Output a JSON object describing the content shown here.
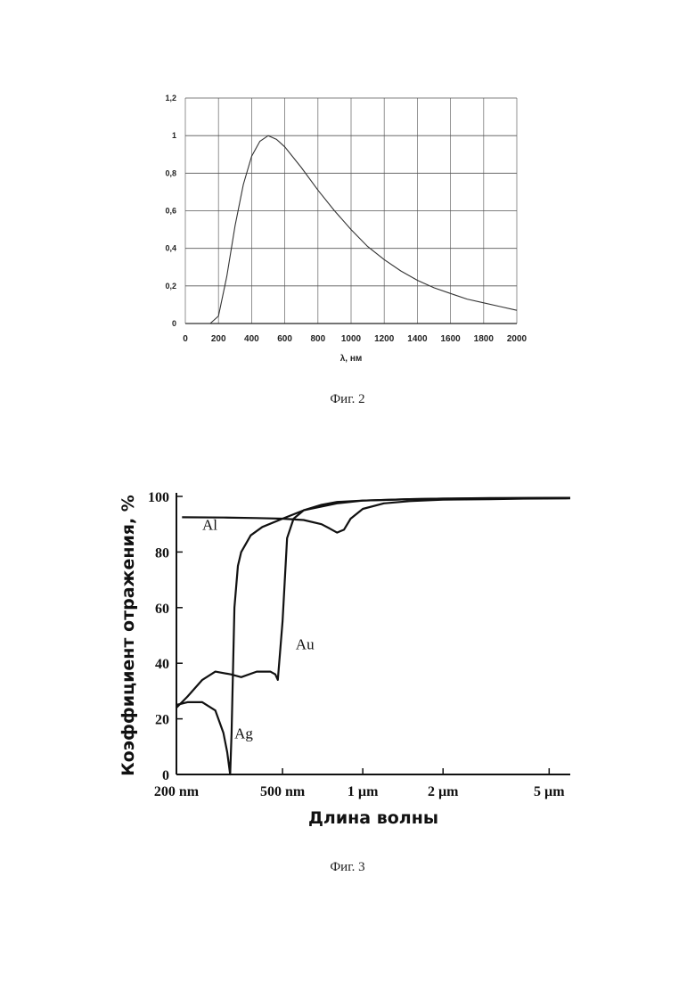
{
  "figures": [
    {
      "caption": "Фиг. 2",
      "chart_data": {
        "type": "line",
        "title": "",
        "xlabel": "λ, нм",
        "ylabel": "",
        "xlim": [
          0,
          2000
        ],
        "ylim": [
          0,
          1.2
        ],
        "x_ticks": [
          "0",
          "200",
          "400",
          "600",
          "800",
          "1000",
          "1200",
          "1400",
          "1600",
          "1800",
          "2000"
        ],
        "y_ticks": [
          "0",
          "0,2",
          "0,4",
          "0,6",
          "0,8",
          "1",
          "1,2"
        ],
        "grid": true,
        "series": [
          {
            "x": [
              150,
              200,
              250,
              300,
              350,
              400,
              450,
              500,
              550,
              600,
              700,
              800,
              900,
              1000,
              1100,
              1200,
              1300,
              1400,
              1500,
              1600,
              1700,
              1800,
              1900,
              2000
            ],
            "y": [
              0.0,
              0.04,
              0.25,
              0.52,
              0.74,
              0.89,
              0.97,
              1.0,
              0.98,
              0.94,
              0.83,
              0.71,
              0.6,
              0.5,
              0.41,
              0.34,
              0.28,
              0.23,
              0.19,
              0.16,
              0.13,
              0.11,
              0.09,
              0.07
            ]
          }
        ]
      }
    },
    {
      "caption": "Фиг. 3",
      "chart_data": {
        "type": "line",
        "title": "",
        "xlabel": "Длина волны",
        "ylabel": "Коэффициент отражения, %",
        "x_scale": "log",
        "x_unit": "nm",
        "xlim": [
          200,
          6000
        ],
        "ylim": [
          0,
          100
        ],
        "x_ticks": [
          {
            "value": 200,
            "label": "200 nm"
          },
          {
            "value": 500,
            "label": "500 nm"
          },
          {
            "value": 1000,
            "label": "1 µm"
          },
          {
            "value": 2000,
            "label": "2 µm"
          },
          {
            "value": 5000,
            "label": "5 µm"
          }
        ],
        "y_ticks": [
          "0",
          "20",
          "40",
          "60",
          "80",
          "100"
        ],
        "grid": false,
        "series": [
          {
            "name": "Al",
            "x": [
              210,
              300,
              400,
              500,
              600,
              700,
              750,
              800,
              850,
              900,
              1000,
              1200,
              1500,
              2000,
              3000,
              4000,
              6000
            ],
            "y": [
              92.5,
              92.4,
              92.2,
              92.0,
              91.5,
              90.0,
              88.5,
              87.0,
              88.0,
              92.0,
              95.5,
              97.5,
              98.3,
              98.8,
              99.0,
              99.2,
              99.3
            ]
          },
          {
            "name": "Au",
            "x": [
              200,
              220,
              250,
              280,
              320,
              350,
              400,
              450,
              470,
              480,
              500,
              520,
              550,
              600,
              700,
              800,
              1000,
              1500,
              2000,
              3000,
              6000
            ],
            "y": [
              24,
              28,
              34,
              37,
              36,
              35,
              37,
              37,
              36,
              34,
              55,
              85,
              92,
              95,
              97,
              98,
              98.5,
              99,
              99.2,
              99.3,
              99.5
            ]
          },
          {
            "name": "Ag",
            "x": [
              200,
              220,
              250,
              280,
              300,
              310,
              318,
              322,
              330,
              340,
              350,
              380,
              420,
              500,
              600,
              800,
              1000,
              1500,
              2000,
              3000,
              6000
            ],
            "y": [
              25,
              26,
              26,
              23,
              15,
              8,
              0,
              15,
              60,
              75,
              80,
              86,
              89,
              92,
              95,
              97.5,
              98.5,
              99,
              99.2,
              99.4,
              99.5
            ]
          }
        ],
        "annotations": [
          {
            "text": "Al",
            "x": 250,
            "y": 88
          },
          {
            "text": "Au",
            "x": 560,
            "y": 45
          },
          {
            "text": "Ag",
            "x": 330,
            "y": 13
          }
        ]
      }
    }
  ]
}
